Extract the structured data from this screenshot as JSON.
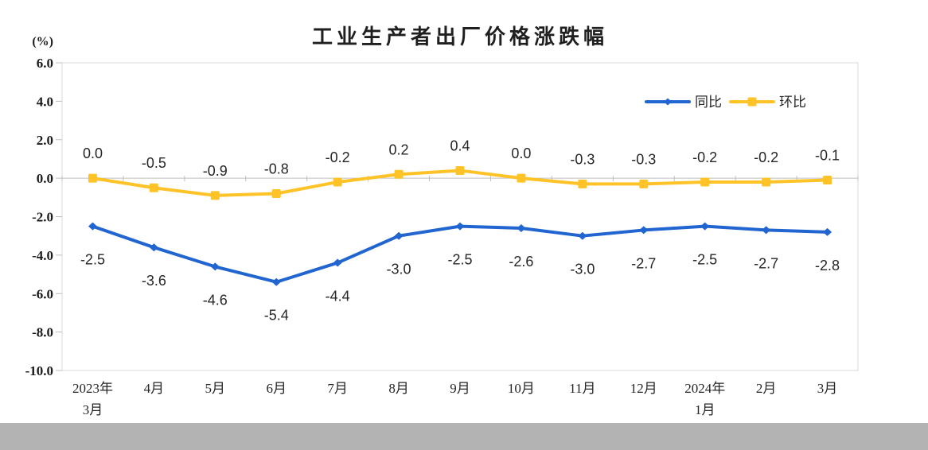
{
  "page": {
    "background": "#FFFFFF",
    "footer_bar_color": "#B3B3B3"
  },
  "chart_data": {
    "type": "line",
    "title": "工业生产者出厂价格涨跌幅",
    "unit_label": "(%)",
    "categories": [
      [
        "2023年",
        "3月"
      ],
      [
        "4月"
      ],
      [
        "5月"
      ],
      [
        "6月"
      ],
      [
        "7月"
      ],
      [
        "8月"
      ],
      [
        "9月"
      ],
      [
        "10月"
      ],
      [
        "11月"
      ],
      [
        "12月"
      ],
      [
        "2024年",
        "1月"
      ],
      [
        "2月"
      ],
      [
        "3月"
      ]
    ],
    "y_ticks": [
      "6.0",
      "4.0",
      "2.0",
      "0.0",
      "-2.0",
      "-4.0",
      "-6.0",
      "-8.0",
      "-10.0"
    ],
    "ylim": [
      -10,
      6
    ],
    "grid": "zero-line-only",
    "plot_border_color": "#D9D9D9",
    "axis_color": "#BFBFBF",
    "legend_position": "top-right",
    "series": [
      {
        "key": "yoy",
        "name": "同比",
        "color": "#2165D1",
        "marker": "diamond",
        "label_position": "below",
        "values": [
          -2.5,
          -3.6,
          -4.6,
          -5.4,
          -4.4,
          -3.0,
          -2.5,
          -2.6,
          -3.0,
          -2.7,
          -2.5,
          -2.7,
          -2.8
        ]
      },
      {
        "key": "mom",
        "name": "环比",
        "color": "#FFC328",
        "marker": "square",
        "label_position": "above",
        "values": [
          0.0,
          -0.5,
          -0.9,
          -0.8,
          -0.2,
          0.2,
          0.4,
          0.0,
          -0.3,
          -0.3,
          -0.2,
          -0.2,
          -0.1
        ]
      }
    ]
  }
}
